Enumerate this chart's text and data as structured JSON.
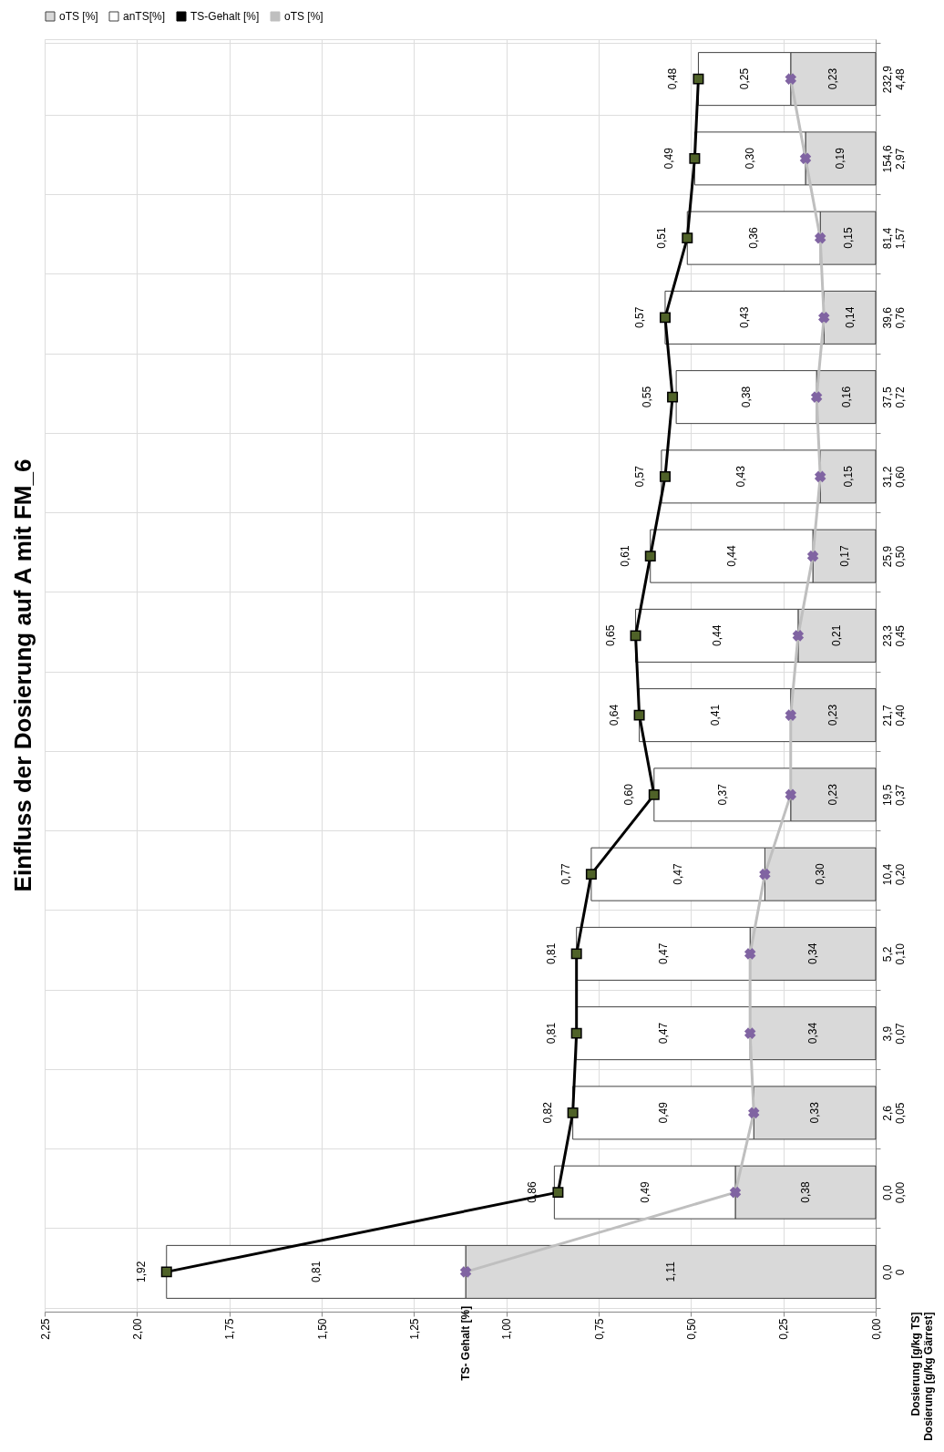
{
  "chart_data": {
    "type": "bar",
    "orientation": "horizontal",
    "stacked": true,
    "title": "Einfluss der Dosierung  auf A mit FM_6",
    "ylabel": "TS- Gehalt [%]",
    "annotations": [
      "Dosierung [g/kg TS]",
      "Dosierung [g/kg Gärrest]"
    ],
    "categories": [
      "232,9\n4,48",
      "154,6\n2,97",
      "81,4\n1,57",
      "39,6\n0,76",
      "37,5\n0,72",
      "31,2\n0,60",
      "25,9\n0,50",
      "23,3\n0,45",
      "21,7\n0,40",
      "19,5\n0,37",
      "10,4\n0,20",
      "5,2\n0,10",
      "3,9\n0,07",
      "2,6\n0,05",
      "0,0\n0,00",
      "0,0\n0"
    ],
    "series": [
      {
        "name": "oTS [%]",
        "type": "bar",
        "color": "#d9d9d9",
        "values": [
          0.23,
          0.19,
          0.15,
          0.14,
          0.16,
          0.15,
          0.17,
          0.21,
          0.23,
          0.23,
          0.3,
          0.34,
          0.34,
          0.33,
          0.38,
          1.11
        ],
        "value_labels": [
          "0,23",
          "0,19",
          "0,15",
          "0,14",
          "0,16",
          "0,15",
          "0,17",
          "0,21",
          "0,23",
          "0,23",
          "0,30",
          "0,34",
          "0,34",
          "0,33",
          "0,38",
          "1,11"
        ]
      },
      {
        "name": "anTS[%]",
        "type": "bar",
        "color": "#ffffff",
        "values": [
          0.25,
          0.3,
          0.36,
          0.43,
          0.38,
          0.43,
          0.44,
          0.44,
          0.41,
          0.37,
          0.47,
          0.47,
          0.47,
          0.49,
          0.49,
          0.81
        ],
        "value_labels": [
          "0,25",
          "0,30",
          "0,36",
          "0,43",
          "0,38",
          "0,43",
          "0,44",
          "0,44",
          "0,41",
          "0,37",
          "0,47",
          "0,47",
          "0,47",
          "0,49",
          "0,49",
          "0,81"
        ]
      },
      {
        "name": "TS-Gehalt [%]",
        "type": "line",
        "color": "#000000",
        "marker": "square",
        "values": [
          0.48,
          0.49,
          0.51,
          0.57,
          0.55,
          0.57,
          0.61,
          0.65,
          0.64,
          0.6,
          0.77,
          0.81,
          0.81,
          0.82,
          0.86,
          1.92
        ],
        "value_labels": [
          "0,48",
          "0,49",
          "0,51",
          "0,57",
          "0,55",
          "0,57",
          "0,61",
          "0,65",
          "0,64",
          "0,60",
          "0,77",
          "0,81",
          "0,81",
          "0,82",
          "0,86",
          "1,92"
        ]
      },
      {
        "name": "oTS [%]",
        "type": "line",
        "color": "#bfbfbf",
        "marker": "cross",
        "values": [
          0.23,
          0.19,
          0.15,
          0.14,
          0.16,
          0.15,
          0.17,
          0.21,
          0.23,
          0.23,
          0.3,
          0.34,
          0.34,
          0.33,
          0.38,
          1.11
        ]
      }
    ],
    "xlim": [
      2.25,
      0
    ],
    "xticks": [
      {
        "value": 2.25,
        "label": "2,25"
      },
      {
        "value": 2.0,
        "label": "2,00"
      },
      {
        "value": 1.75,
        "label": "1,75"
      },
      {
        "value": 1.5,
        "label": "1,50"
      },
      {
        "value": 1.25,
        "label": "1,25"
      },
      {
        "value": 1.0,
        "label": "1,00"
      },
      {
        "value": 0.75,
        "label": "0,75"
      },
      {
        "value": 0.5,
        "label": "0,50"
      },
      {
        "value": 0.25,
        "label": "0,25"
      },
      {
        "value": 0.0,
        "label": "0,00"
      }
    ],
    "grid": true,
    "legend": "top"
  }
}
